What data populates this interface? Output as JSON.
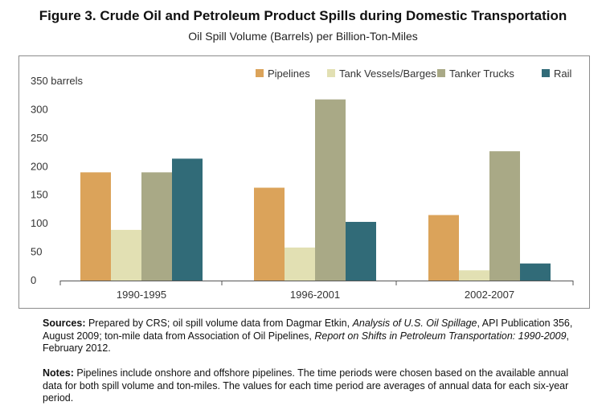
{
  "chart_data": {
    "type": "bar",
    "title": "Figure 3. Crude Oil and Petroleum Product Spills during Domestic Transportation",
    "subtitle": "Oil Spill Volume (Barrels) per Billion-Ton-Miles",
    "ylabel_unit": "barrels",
    "ylim": [
      0,
      350
    ],
    "yticks": [
      "0",
      "50",
      "100",
      "150",
      "200",
      "250",
      "300",
      "350 barrels"
    ],
    "categories": [
      "1990-1995",
      "1996-2001",
      "2002-2007"
    ],
    "series": [
      {
        "name": "Pipelines",
        "values": [
          190,
          163,
          115
        ],
        "color": "#dba35a"
      },
      {
        "name": "Tank Vessels/Barges",
        "values": [
          89,
          58,
          18
        ],
        "color": "#e2e0b3"
      },
      {
        "name": "Tanker Trucks",
        "values": [
          190,
          318,
          227
        ],
        "color": "#a9a986"
      },
      {
        "name": "Rail",
        "values": [
          214,
          103,
          30
        ],
        "color": "#316b78"
      }
    ],
    "legend_position": "top-right",
    "grid": false
  },
  "sources": {
    "label": "Sources:",
    "seg1": " Prepared by CRS; oil spill volume data from Dagmar Etkin, ",
    "ital1": "Analysis of U.S. Oil Spillage",
    "seg2": ", API Publication 356, August 2009; ton-mile data from Association of Oil Pipelines, ",
    "ital2": "Report on Shifts in Petroleum Transportation: 1990-2009",
    "seg3": ", February 2012."
  },
  "notes": {
    "label": "Notes:",
    "text": " Pipelines include onshore and offshore pipelines. The time periods were chosen based on the available annual data for both spill volume and ton-miles. The values for each time period are averages of annual data for each six-year period."
  }
}
